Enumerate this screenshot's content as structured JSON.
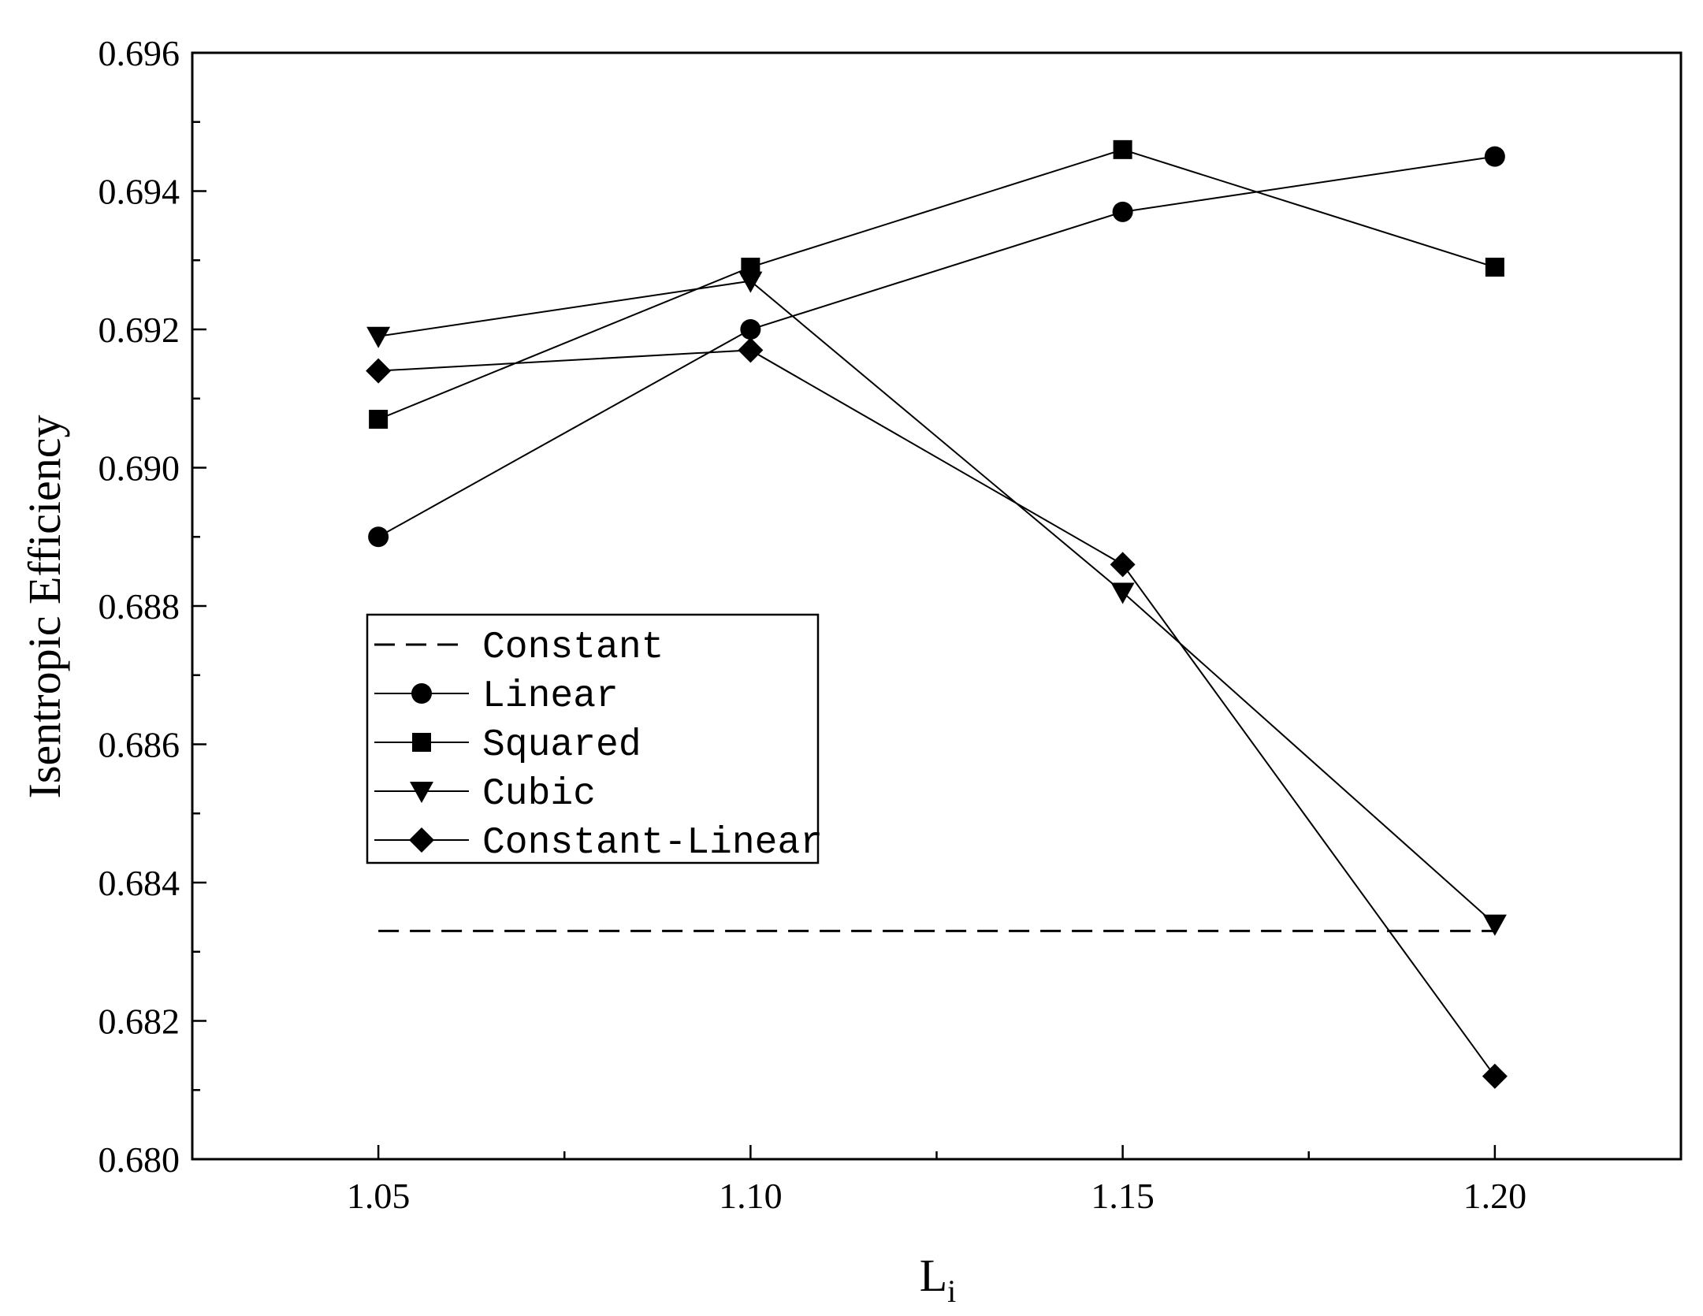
{
  "chart_data": {
    "type": "line",
    "xlabel": "L",
    "xlabel_subscript": "i",
    "ylabel": "Isentropic Efficiency",
    "xlim": [
      1.025,
      1.225
    ],
    "ylim": [
      0.68,
      0.696
    ],
    "x_ticks": [
      1.05,
      1.1,
      1.15,
      1.2
    ],
    "x_tick_labels": [
      "1.05",
      "1.10",
      "1.15",
      "1.20"
    ],
    "y_ticks": [
      0.68,
      0.682,
      0.684,
      0.686,
      0.688,
      0.69,
      0.692,
      0.694,
      0.696
    ],
    "y_tick_labels": [
      "0.680",
      "0.682",
      "0.684",
      "0.686",
      "0.688",
      "0.690",
      "0.692",
      "0.694",
      "0.696"
    ],
    "grid": false,
    "legend_position": "center-left",
    "x": [
      1.05,
      1.1,
      1.15,
      1.2
    ],
    "series": [
      {
        "name": "Constant",
        "marker": "none",
        "style": "dashed",
        "values": [
          0.6833,
          0.6833,
          0.6833,
          0.6833
        ]
      },
      {
        "name": "Linear",
        "marker": "circle",
        "style": "solid",
        "values": [
          0.689,
          0.692,
          0.6937,
          0.6945
        ]
      },
      {
        "name": "Squared",
        "marker": "square",
        "style": "solid",
        "values": [
          0.6907,
          0.6929,
          0.6946,
          0.6929
        ]
      },
      {
        "name": "Cubic",
        "marker": "triangle-down",
        "style": "solid",
        "values": [
          0.6919,
          0.6927,
          0.6882,
          0.6834
        ]
      },
      {
        "name": "Constant-Linear",
        "marker": "diamond",
        "style": "solid",
        "values": [
          0.6914,
          0.6917,
          0.6886,
          0.6812
        ]
      }
    ],
    "colors": {
      "line": "#000000",
      "background": "#ffffff"
    }
  }
}
